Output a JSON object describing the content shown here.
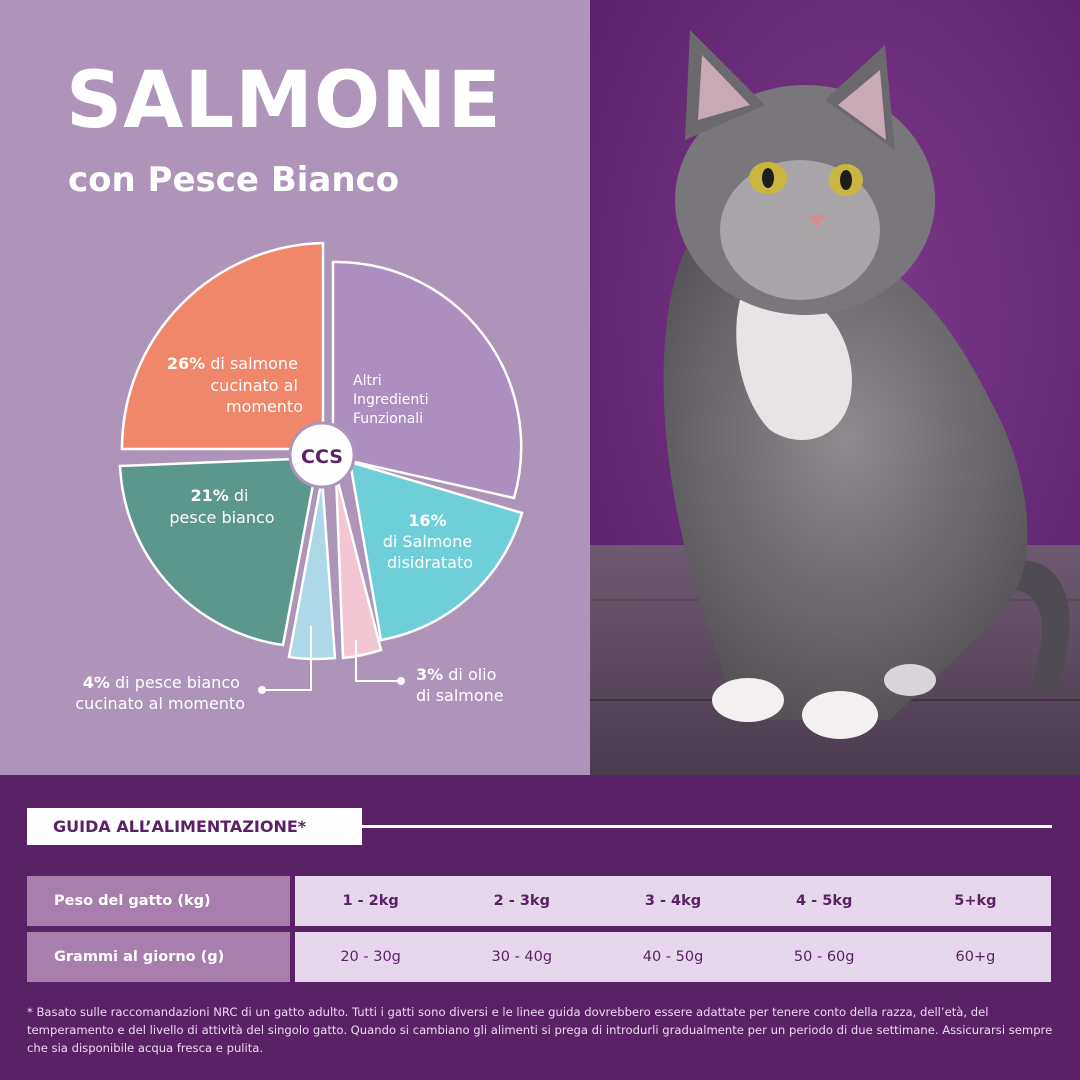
{
  "header": {
    "title": "SALMONE",
    "subtitle": "con Pesce Bianco"
  },
  "composition": {
    "center_label": "CCS",
    "slices": [
      {
        "percent": "26%",
        "label": "di salmone cucinato al momento",
        "color": "#f0866a"
      },
      {
        "percent": "",
        "label": "Altri Ingredienti Funzionali",
        "color": "#ad8ec0"
      },
      {
        "percent": "16%",
        "label": "di Salmone disidratato",
        "color": "#6ecfda"
      },
      {
        "percent": "3%",
        "label": "di olio di salmone",
        "color": "#f4c6d3"
      },
      {
        "percent": "4%",
        "label": "di pesce bianco cucinato al momento",
        "color": "#acd8ea"
      },
      {
        "percent": "21%",
        "label": "di pesce bianco",
        "color": "#5b978c"
      }
    ]
  },
  "photo": {
    "icon": "cat-photo",
    "background": "#6a2a78"
  },
  "feeding_guide": {
    "title": "GUIDA ALL’ALIMENTAZIONE*",
    "rows": [
      {
        "header": "Peso del gatto (kg)",
        "cells": [
          "1 - 2kg",
          "2 - 3kg",
          "3 - 4kg",
          "4 - 5kg",
          "5+kg"
        ]
      },
      {
        "header": "Grammi al giorno (g)",
        "cells": [
          "20 - 30g",
          "30 - 40g",
          "40 - 50g",
          "50 - 60g",
          "60+g"
        ]
      }
    ],
    "footnote": "* Basato sulle raccomandazioni NRC di un gatto adulto. Tutti i gatti sono diversi e le linee guida dovrebbero essere adattate per tenere conto della razza, dell’età, del temperamento e del livello di attività del singolo gatto. Quando si cambiano gli alimenti si prega di introdurli gradualmente per un periodo di due settimane. Assicurarsi sempre che sia disponibile acqua fresca e pulita."
  },
  "colors": {
    "panel": "#ad94b8",
    "brand_purple": "#5b2167",
    "row_header": "#a77eac",
    "row_cells": "#e7d7ec"
  }
}
